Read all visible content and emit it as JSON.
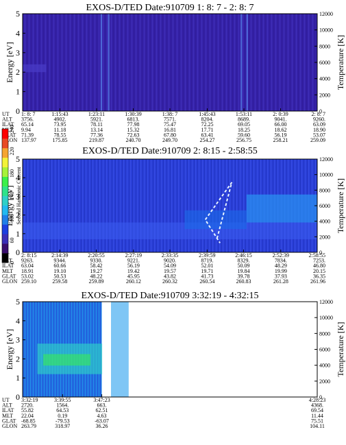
{
  "colorbar": {
    "label": "Second Harmonic Current",
    "ticks": [
      "0",
      "60",
      "100",
      "140",
      "180",
      "220",
      "240"
    ],
    "colors": [
      "#000000",
      "#3a0f6e",
      "#3b2fb8",
      "#1c3fe0",
      "#1f7fe8",
      "#22b9f0",
      "#2fd0c8",
      "#2ee38a",
      "#3bf04a",
      "#a7f23a",
      "#f3f33a",
      "#f5a530",
      "#e84a25",
      "#ff0000"
    ]
  },
  "chart_data": [
    {
      "type": "heatmap",
      "title": "EXOS-D/TED   Date:910709   1: 8: 7 - 2: 8: 7",
      "ylabel": "Energy [eV]",
      "ylabel_right": "Temperature [K]",
      "ylim": [
        0,
        5
      ],
      "yticks": [
        "0",
        "1",
        "2",
        "3",
        "4",
        "5"
      ],
      "ylim_right": [
        0,
        12000
      ],
      "yticks_right": [
        "0",
        "2000",
        "4000",
        "6000",
        "8000",
        "10000",
        "12000"
      ],
      "data_gaps": [],
      "dominant_level": "low",
      "table": {
        "row_labels": [
          "UT",
          "ALT",
          "ILAT",
          "MLT",
          "GLAT",
          "GLON"
        ],
        "columns": [
          [
            "1: 8: 7",
            "3756.",
            "65.14",
            "9.94",
            "71.39",
            "137.97"
          ],
          [
            "1:15:43",
            "4902.",
            "73.95",
            "11.18",
            "78.55",
            "175.85"
          ],
          [
            "1:23:11",
            "5921.",
            "78.11",
            "13.14",
            "77.36",
            "219.87"
          ],
          [
            "1:30:39",
            "6813.",
            "77.98",
            "15.32",
            "72.63",
            "240.70"
          ],
          [
            "1:38: 7",
            "7571.",
            "75.47",
            "16.81",
            "67.80",
            "249.70"
          ],
          [
            "1:45:43",
            "8204.",
            "72.25",
            "17.71",
            "63.41",
            "254.27"
          ],
          [
            "1:53:11",
            "8689.",
            "69.05",
            "18.25",
            "59.60",
            "256.75"
          ],
          [
            "2: 0:39",
            "9041.",
            "66.00",
            "18.62",
            "56.19",
            "258.21"
          ],
          [
            "2: 8: 7",
            "9260.",
            "63.09",
            "18.90",
            "53.07",
            "259.09"
          ]
        ]
      }
    },
    {
      "type": "heatmap",
      "title": "EXOS-D/TED   Date:910709   2: 8:15 - 2:58:55",
      "ylabel": "Energy [eV]",
      "ylabel_right": "Temperature [K]",
      "ylim": [
        0,
        5
      ],
      "yticks": [
        "0",
        "1",
        "2",
        "3",
        "4",
        "5"
      ],
      "ylim_right": [
        0,
        12000
      ],
      "yticks_right": [
        "0",
        "2000",
        "4000",
        "6000",
        "8000",
        "10000",
        "12000"
      ],
      "data_gaps": [],
      "dominant_level": "mid",
      "table": {
        "row_labels": [
          "UT",
          "ALT",
          "ILAT",
          "MLT",
          "GLAT",
          "GLON"
        ],
        "columns": [
          [
            "2: 8:15",
            "9263.",
            "63.04",
            "18.91",
            "53.02",
            "259.10"
          ],
          [
            "2:14:39",
            "9344.",
            "60.66",
            "19.10",
            "50.53",
            "259.58"
          ],
          [
            "2:20:55",
            "9330.",
            "58.42",
            "19.27",
            "48.22",
            "259.89"
          ],
          [
            "2:27:19",
            "9221.",
            "56.19",
            "19.42",
            "45.95",
            "260.12"
          ],
          [
            "2:33:35",
            "9020.",
            "54.09",
            "19.57",
            "43.82",
            "260.32"
          ],
          [
            "2:39:59",
            "8719.",
            "52.01",
            "19.71",
            "41.73",
            "260.54"
          ],
          [
            "2:46:15",
            "8329.",
            "50.09",
            "19.84",
            "39.78",
            "260.83"
          ],
          [
            "2:52:39",
            "7834.",
            "48.29",
            "19.99",
            "37.93",
            "261.28"
          ],
          [
            "2:58:55",
            "7253.",
            "46.80",
            "20.15",
            "36.35",
            "261.96"
          ]
        ]
      }
    },
    {
      "type": "heatmap",
      "title": "EXOS-D/TED   Date:910709   3:32:19 - 4:32:15",
      "ylabel": "Energy [eV]",
      "ylabel_right": "Temperature [K]",
      "ylim": [
        0,
        5
      ],
      "yticks": [
        "0",
        "1",
        "2",
        "3",
        "4",
        "5"
      ],
      "ylim_right": [
        0,
        12000
      ],
      "yticks_right": [
        "0",
        "2000",
        "4000",
        "6000",
        "8000",
        "10000",
        "12000"
      ],
      "data_gaps": [
        [
          "3:47:23",
          "4:28:23"
        ]
      ],
      "dominant_level": "high",
      "table": {
        "row_labels": [
          "UT",
          "ALT",
          "ILAT",
          "MLT",
          "GLAT",
          "GLON"
        ],
        "columns": [
          [
            "3:32:19",
            "2720.",
            "55.82",
            "22.04",
            "-68.85",
            "263.79"
          ],
          [
            "3:39:55",
            "1564.",
            "64.53",
            "0.19",
            "-79.53",
            "318.97"
          ],
          [
            "3:47:23",
            "663.",
            "62.51",
            "4.63",
            "-63.07",
            "36.26"
          ],
          [
            "4:28:23",
            "4368.",
            "69.54",
            "11.44",
            "75.51",
            "104.11"
          ]
        ]
      }
    }
  ]
}
